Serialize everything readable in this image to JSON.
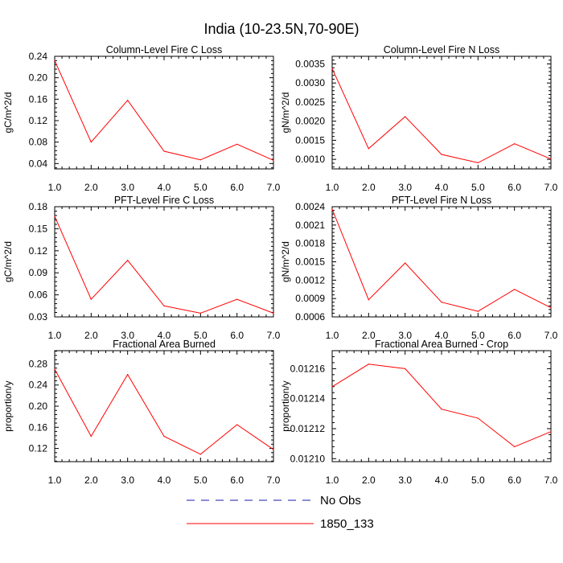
{
  "figure_title": "India (10-23.5N,70-90E)",
  "colors": {
    "model_line": "#ff0000",
    "obs_line": "#1a1aa8",
    "axes": "#000000"
  },
  "legend": [
    {
      "label": "No Obs",
      "style": "dashed",
      "color": "#1a1aa8"
    },
    {
      "label": "1850_133",
      "style": "solid",
      "color": "#ff0000"
    }
  ],
  "chart_data": [
    {
      "type": "line",
      "title": "Column-Level Fire C Loss",
      "ylabel": "gC/m^2/d",
      "xlabel": "",
      "x": [
        1,
        2,
        3,
        4,
        5,
        6,
        7
      ],
      "xticks": [
        "1.0",
        "2.0",
        "3.0",
        "4.0",
        "5.0",
        "6.0",
        "7.0"
      ],
      "ylim": [
        0.03,
        0.24
      ],
      "yticks": [
        "0.04",
        "0.08",
        "0.12",
        "0.16",
        "0.20",
        "0.24"
      ],
      "ytick_values": [
        0.04,
        0.08,
        0.12,
        0.16,
        0.2,
        0.24
      ],
      "series": [
        {
          "name": "1850_133",
          "values": [
            0.232,
            0.08,
            0.158,
            0.063,
            0.047,
            0.076,
            0.046
          ]
        }
      ]
    },
    {
      "type": "line",
      "title": "Column-Level Fire N Loss",
      "ylabel": "gN/m^2/d",
      "xlabel": "",
      "x": [
        1,
        2,
        3,
        4,
        5,
        6,
        7
      ],
      "xticks": [
        "1.0",
        "2.0",
        "3.0",
        "4.0",
        "5.0",
        "6.0",
        "7.0"
      ],
      "ylim": [
        0.00075,
        0.0037
      ],
      "yticks": [
        "0.0010",
        "0.0015",
        "0.0020",
        "0.0025",
        "0.0030",
        "0.0035"
      ],
      "ytick_values": [
        0.001,
        0.0015,
        0.002,
        0.0025,
        0.003,
        0.0035
      ],
      "series": [
        {
          "name": "1850_133",
          "values": [
            0.00338,
            0.00128,
            0.00212,
            0.00113,
            0.00091,
            0.00141,
            0.00101
          ]
        }
      ]
    },
    {
      "type": "line",
      "title": "PFT-Level Fire C Loss",
      "ylabel": "gC/m^2/d",
      "xlabel": "",
      "x": [
        1,
        2,
        3,
        4,
        5,
        6,
        7
      ],
      "xticks": [
        "1.0",
        "2.0",
        "3.0",
        "4.0",
        "5.0",
        "6.0",
        "7.0"
      ],
      "ylim": [
        0.03,
        0.18
      ],
      "yticks": [
        "0.03",
        "0.06",
        "0.09",
        "0.12",
        "0.15",
        "0.18"
      ],
      "ytick_values": [
        0.03,
        0.06,
        0.09,
        0.12,
        0.15,
        0.18
      ],
      "series": [
        {
          "name": "1850_133",
          "values": [
            0.167,
            0.054,
            0.107,
            0.045,
            0.035,
            0.054,
            0.035
          ]
        }
      ]
    },
    {
      "type": "line",
      "title": "PFT-Level Fire N Loss",
      "ylabel": "gN/m^2/d",
      "xlabel": "",
      "x": [
        1,
        2,
        3,
        4,
        5,
        6,
        7
      ],
      "xticks": [
        "1.0",
        "2.0",
        "3.0",
        "4.0",
        "5.0",
        "6.0",
        "7.0"
      ],
      "ylim": [
        0.0006,
        0.0024
      ],
      "yticks": [
        "0.0006",
        "0.0009",
        "0.0012",
        "0.0015",
        "0.0018",
        "0.0021",
        "0.0024"
      ],
      "ytick_values": [
        0.0006,
        0.0009,
        0.0012,
        0.0015,
        0.0018,
        0.0021,
        0.0024
      ],
      "series": [
        {
          "name": "1850_133",
          "values": [
            0.00236,
            0.00088,
            0.00148,
            0.00084,
            0.00069,
            0.00105,
            0.00075
          ]
        }
      ]
    },
    {
      "type": "line",
      "title": "Fractional Area Burned",
      "ylabel": "proportion/y",
      "xlabel": "",
      "x": [
        1,
        2,
        3,
        4,
        5,
        6,
        7
      ],
      "xticks": [
        "1.0",
        "2.0",
        "3.0",
        "4.0",
        "5.0",
        "6.0",
        "7.0"
      ],
      "ylim": [
        0.095,
        0.305
      ],
      "yticks": [
        "0.12",
        "0.16",
        "0.20",
        "0.24",
        "0.28"
      ],
      "ytick_values": [
        0.12,
        0.16,
        0.2,
        0.24,
        0.28
      ],
      "series": [
        {
          "name": "1850_133",
          "values": [
            0.27,
            0.143,
            0.26,
            0.143,
            0.109,
            0.165,
            0.118
          ]
        }
      ]
    },
    {
      "type": "line",
      "title": "Fractional Area Burned - Crop",
      "ylabel": "proportion/y",
      "xlabel": "",
      "x": [
        1,
        2,
        3,
        4,
        5,
        6,
        7
      ],
      "xticks": [
        "1.0",
        "2.0",
        "3.0",
        "4.0",
        "5.0",
        "6.0",
        "7.0"
      ],
      "ylim": [
        0.012098,
        0.012172
      ],
      "yticks": [
        "0.01210",
        "0.01212",
        "0.01214",
        "0.01216"
      ],
      "ytick_values": [
        0.0121,
        0.01212,
        0.01214,
        0.01216
      ],
      "series": [
        {
          "name": "1850_133",
          "values": [
            0.012148,
            0.012163,
            0.01216,
            0.012133,
            0.012127,
            0.012108,
            0.012118
          ]
        }
      ]
    }
  ]
}
